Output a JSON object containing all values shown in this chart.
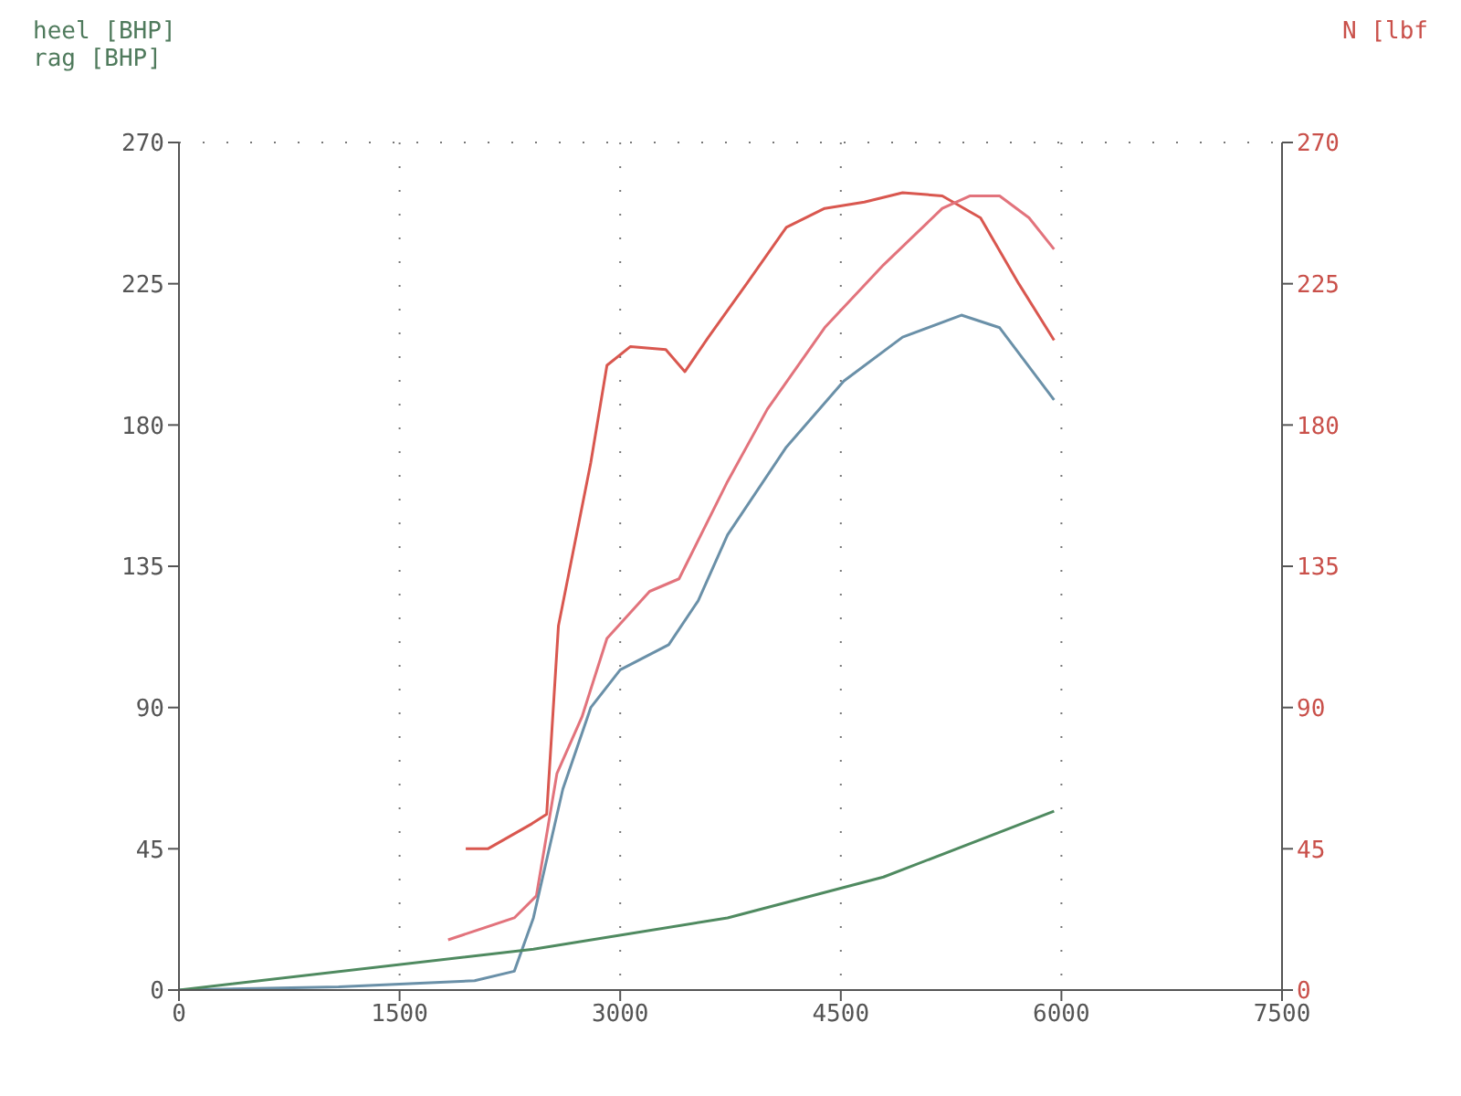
{
  "chart_data": {
    "type": "line",
    "annotations": [
      "heel [BHP]",
      "rag [BHP]"
    ],
    "y2label": "N [lbf",
    "xlim": [
      0,
      7500
    ],
    "xticks": [
      0,
      1500,
      3000,
      4500,
      6000,
      7500
    ],
    "ylim": [
      0,
      270
    ],
    "yticks": [
      0,
      45,
      90,
      135,
      180,
      225,
      270
    ],
    "y2lim": [
      0,
      270
    ],
    "y2ticks": [
      0,
      45,
      90,
      135,
      180,
      225,
      270
    ],
    "grid": true,
    "marker": "none",
    "line_style": "solid",
    "series": [
      {
        "color": "#d9574f",
        "axis": "y2",
        "x": [
          1950,
          2100,
          2400,
          2500,
          2580,
          2800,
          2910,
          3070,
          3310,
          3440,
          3600,
          3860,
          4130,
          4390,
          4660,
          4920,
          5190,
          5450,
          5710,
          5950
        ],
        "values": [
          45,
          45,
          53,
          56,
          116,
          168,
          199,
          205,
          204,
          197,
          208,
          225,
          243,
          249,
          251,
          254,
          253,
          246,
          225,
          207
        ]
      },
      {
        "color": "#e2737c",
        "x": [
          1830,
          2280,
          2430,
          2570,
          2740,
          2910,
          3200,
          3400,
          3730,
          4000,
          4390,
          4790,
          5190,
          5380,
          5580,
          5780,
          5950
        ],
        "values": [
          16,
          23,
          30,
          69,
          87,
          112,
          127,
          131,
          162,
          185,
          211,
          231,
          249,
          253,
          253,
          246,
          236
        ]
      },
      {
        "color": "#6a90a8",
        "x": [
          0,
          1085,
          2010,
          2280,
          2410,
          2610,
          2800,
          3000,
          3330,
          3530,
          3730,
          4130,
          4520,
          4920,
          5320,
          5580,
          5950
        ],
        "values": [
          0,
          1,
          3,
          6,
          23,
          64,
          90,
          102,
          110,
          124,
          145,
          173,
          194,
          208,
          215,
          211,
          188
        ]
      },
      {
        "color": "#4f8a60",
        "x": [
          0,
          2410,
          3730,
          4790,
          5950
        ],
        "values": [
          0,
          13,
          23,
          36,
          57
        ]
      }
    ]
  }
}
